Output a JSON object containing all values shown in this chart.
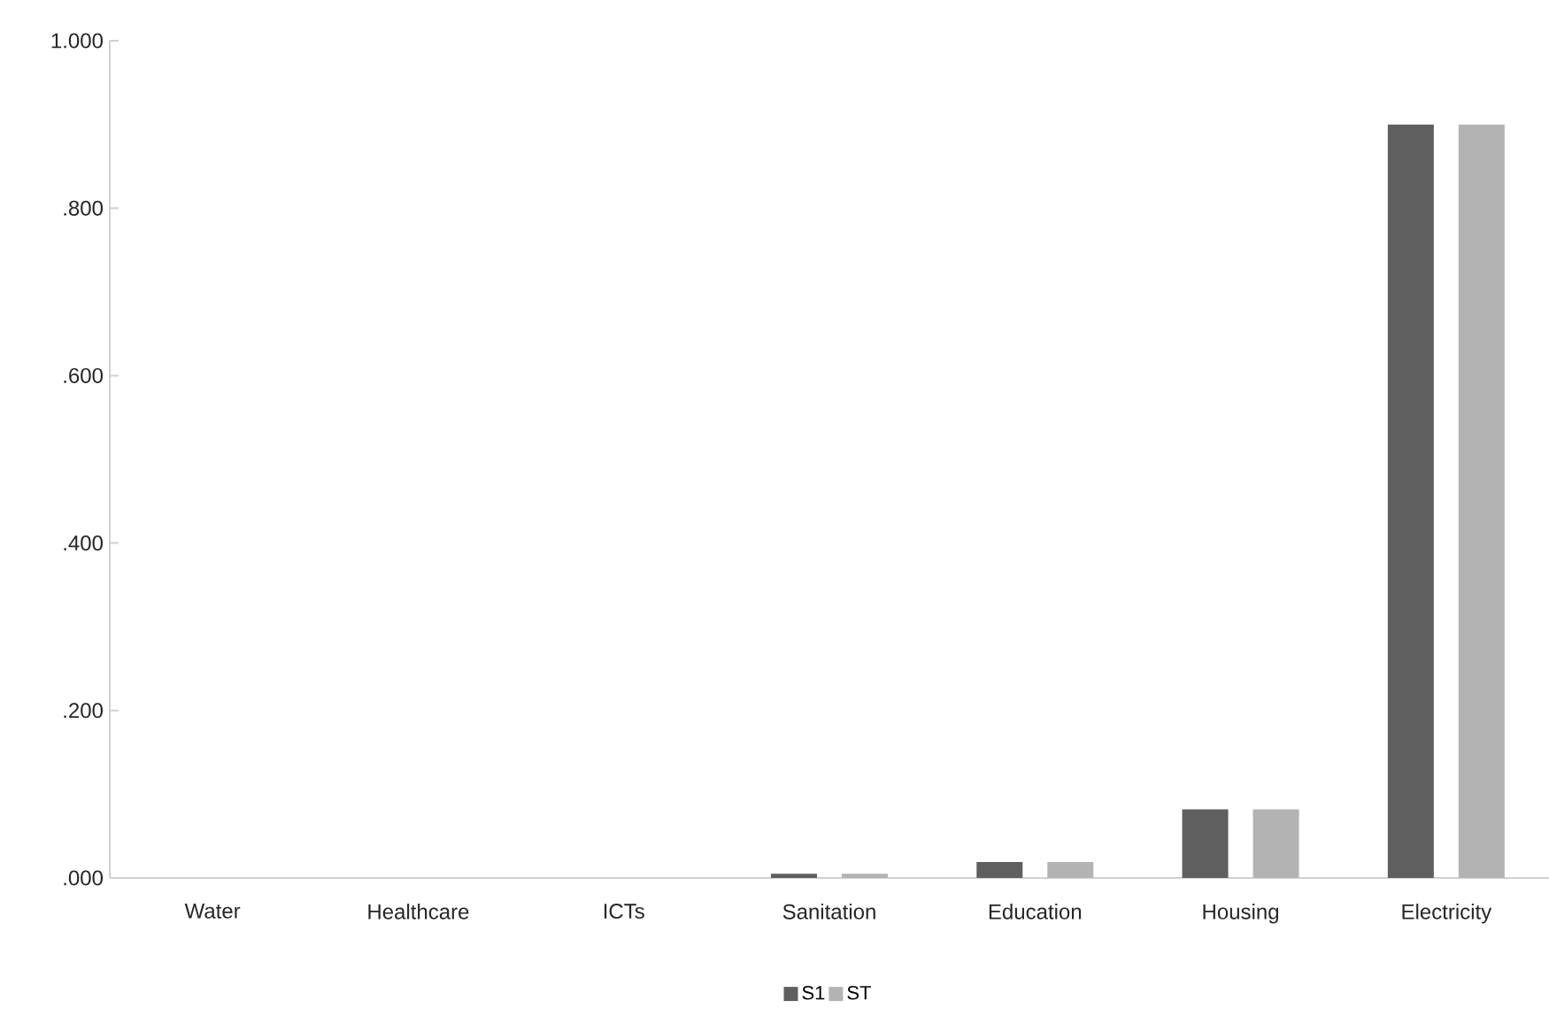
{
  "chart_data": {
    "type": "bar",
    "categories": [
      "Water",
      "Healthcare",
      "ICTs",
      "Sanitation",
      "Education",
      "Housing",
      "Electricity"
    ],
    "series": [
      {
        "name": "S1",
        "color": "#5f5f5f",
        "values": [
          0,
          0,
          0,
          0.005,
          0.019,
          0.082,
          0.9
        ]
      },
      {
        "name": "ST",
        "color": "#b3b3b3",
        "values": [
          0,
          0,
          0,
          0.005,
          0.019,
          0.082,
          0.9
        ]
      }
    ],
    "ylim": [
      0,
      1
    ],
    "yticks": [
      {
        "value": 0,
        "label": ".000"
      },
      {
        "value": 0.2,
        "label": ".200"
      },
      {
        "value": 0.4,
        "label": ".400"
      },
      {
        "value": 0.6,
        "label": ".600"
      },
      {
        "value": 0.8,
        "label": ".800"
      },
      {
        "value": 1,
        "label": "1.000"
      }
    ],
    "grid": false,
    "legend": "bottom"
  }
}
